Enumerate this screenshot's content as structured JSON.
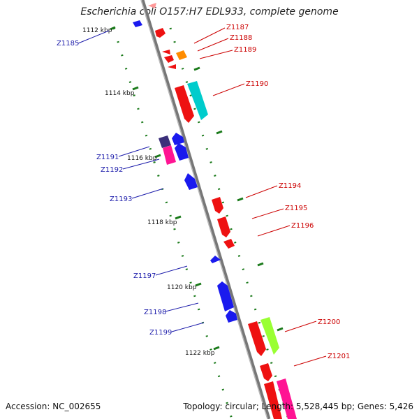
{
  "title": "Escherichia coli O157:H7 EDL933, complete genome",
  "footer": {
    "accession": "Accession: NC_002655",
    "topology": "Topology: circular; Length: 5,528,445 bp; Genes: 5,426"
  },
  "kbp_labels": [
    "1112 kbp",
    "1114 kbp",
    "1116 kbp",
    "1118 kbp",
    "1120 kbp",
    "1122 kbp"
  ],
  "genes_left": [
    "Z1185",
    "Z1191",
    "Z1192",
    "Z1193",
    "Z1197",
    "Z1198",
    "Z1199"
  ],
  "genes_right": [
    "Z1187",
    "Z1188",
    "Z1189",
    "Z1190",
    "Z1194",
    "Z1195",
    "Z1196",
    "Z1200",
    "Z1201"
  ],
  "colors": {
    "forward": "#ee1111",
    "reverse": "#1a1aee",
    "orange": "#ff8c00",
    "cyan": "#00cccc",
    "magenta": "#ff1493",
    "lime": "#99ff33",
    "navy": "#3b2f7a",
    "backbone": "#888888",
    "ticks": "#1a7a1a",
    "left_label": "#1a1aaa",
    "right_label": "#cc0000"
  }
}
